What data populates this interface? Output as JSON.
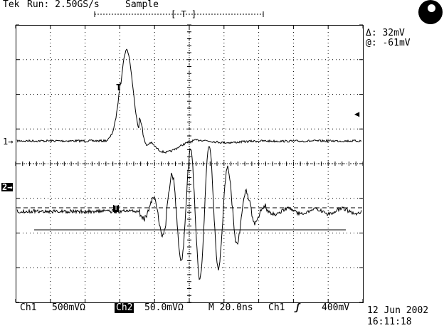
{
  "header": {
    "brand": "Tek",
    "run_status": "Run: 2.50GS/s",
    "acq_mode": "Sample",
    "trigger_bracket": "[ T ]"
  },
  "cursor_readout": {
    "delta": "Δ: 32mV",
    "at": "@: -61mV"
  },
  "markers": {
    "ch1": "1→",
    "ch2": "2→",
    "trigger": "T",
    "trigger_level": "◀"
  },
  "footer": {
    "ch1_label": "Ch1",
    "ch1_scale": "500mVΩ",
    "ch2_label": "Ch2",
    "ch2_scale": "50.0mVΩ",
    "timebase": "M 20.0ns",
    "trig_source": "Ch1",
    "trig_slope": "ʃ",
    "trig_level": "400mV",
    "date": "12 Jun 2002",
    "time": "16:11:18"
  },
  "colors": {
    "trace": "#000000",
    "background": "#ffffff"
  }
}
